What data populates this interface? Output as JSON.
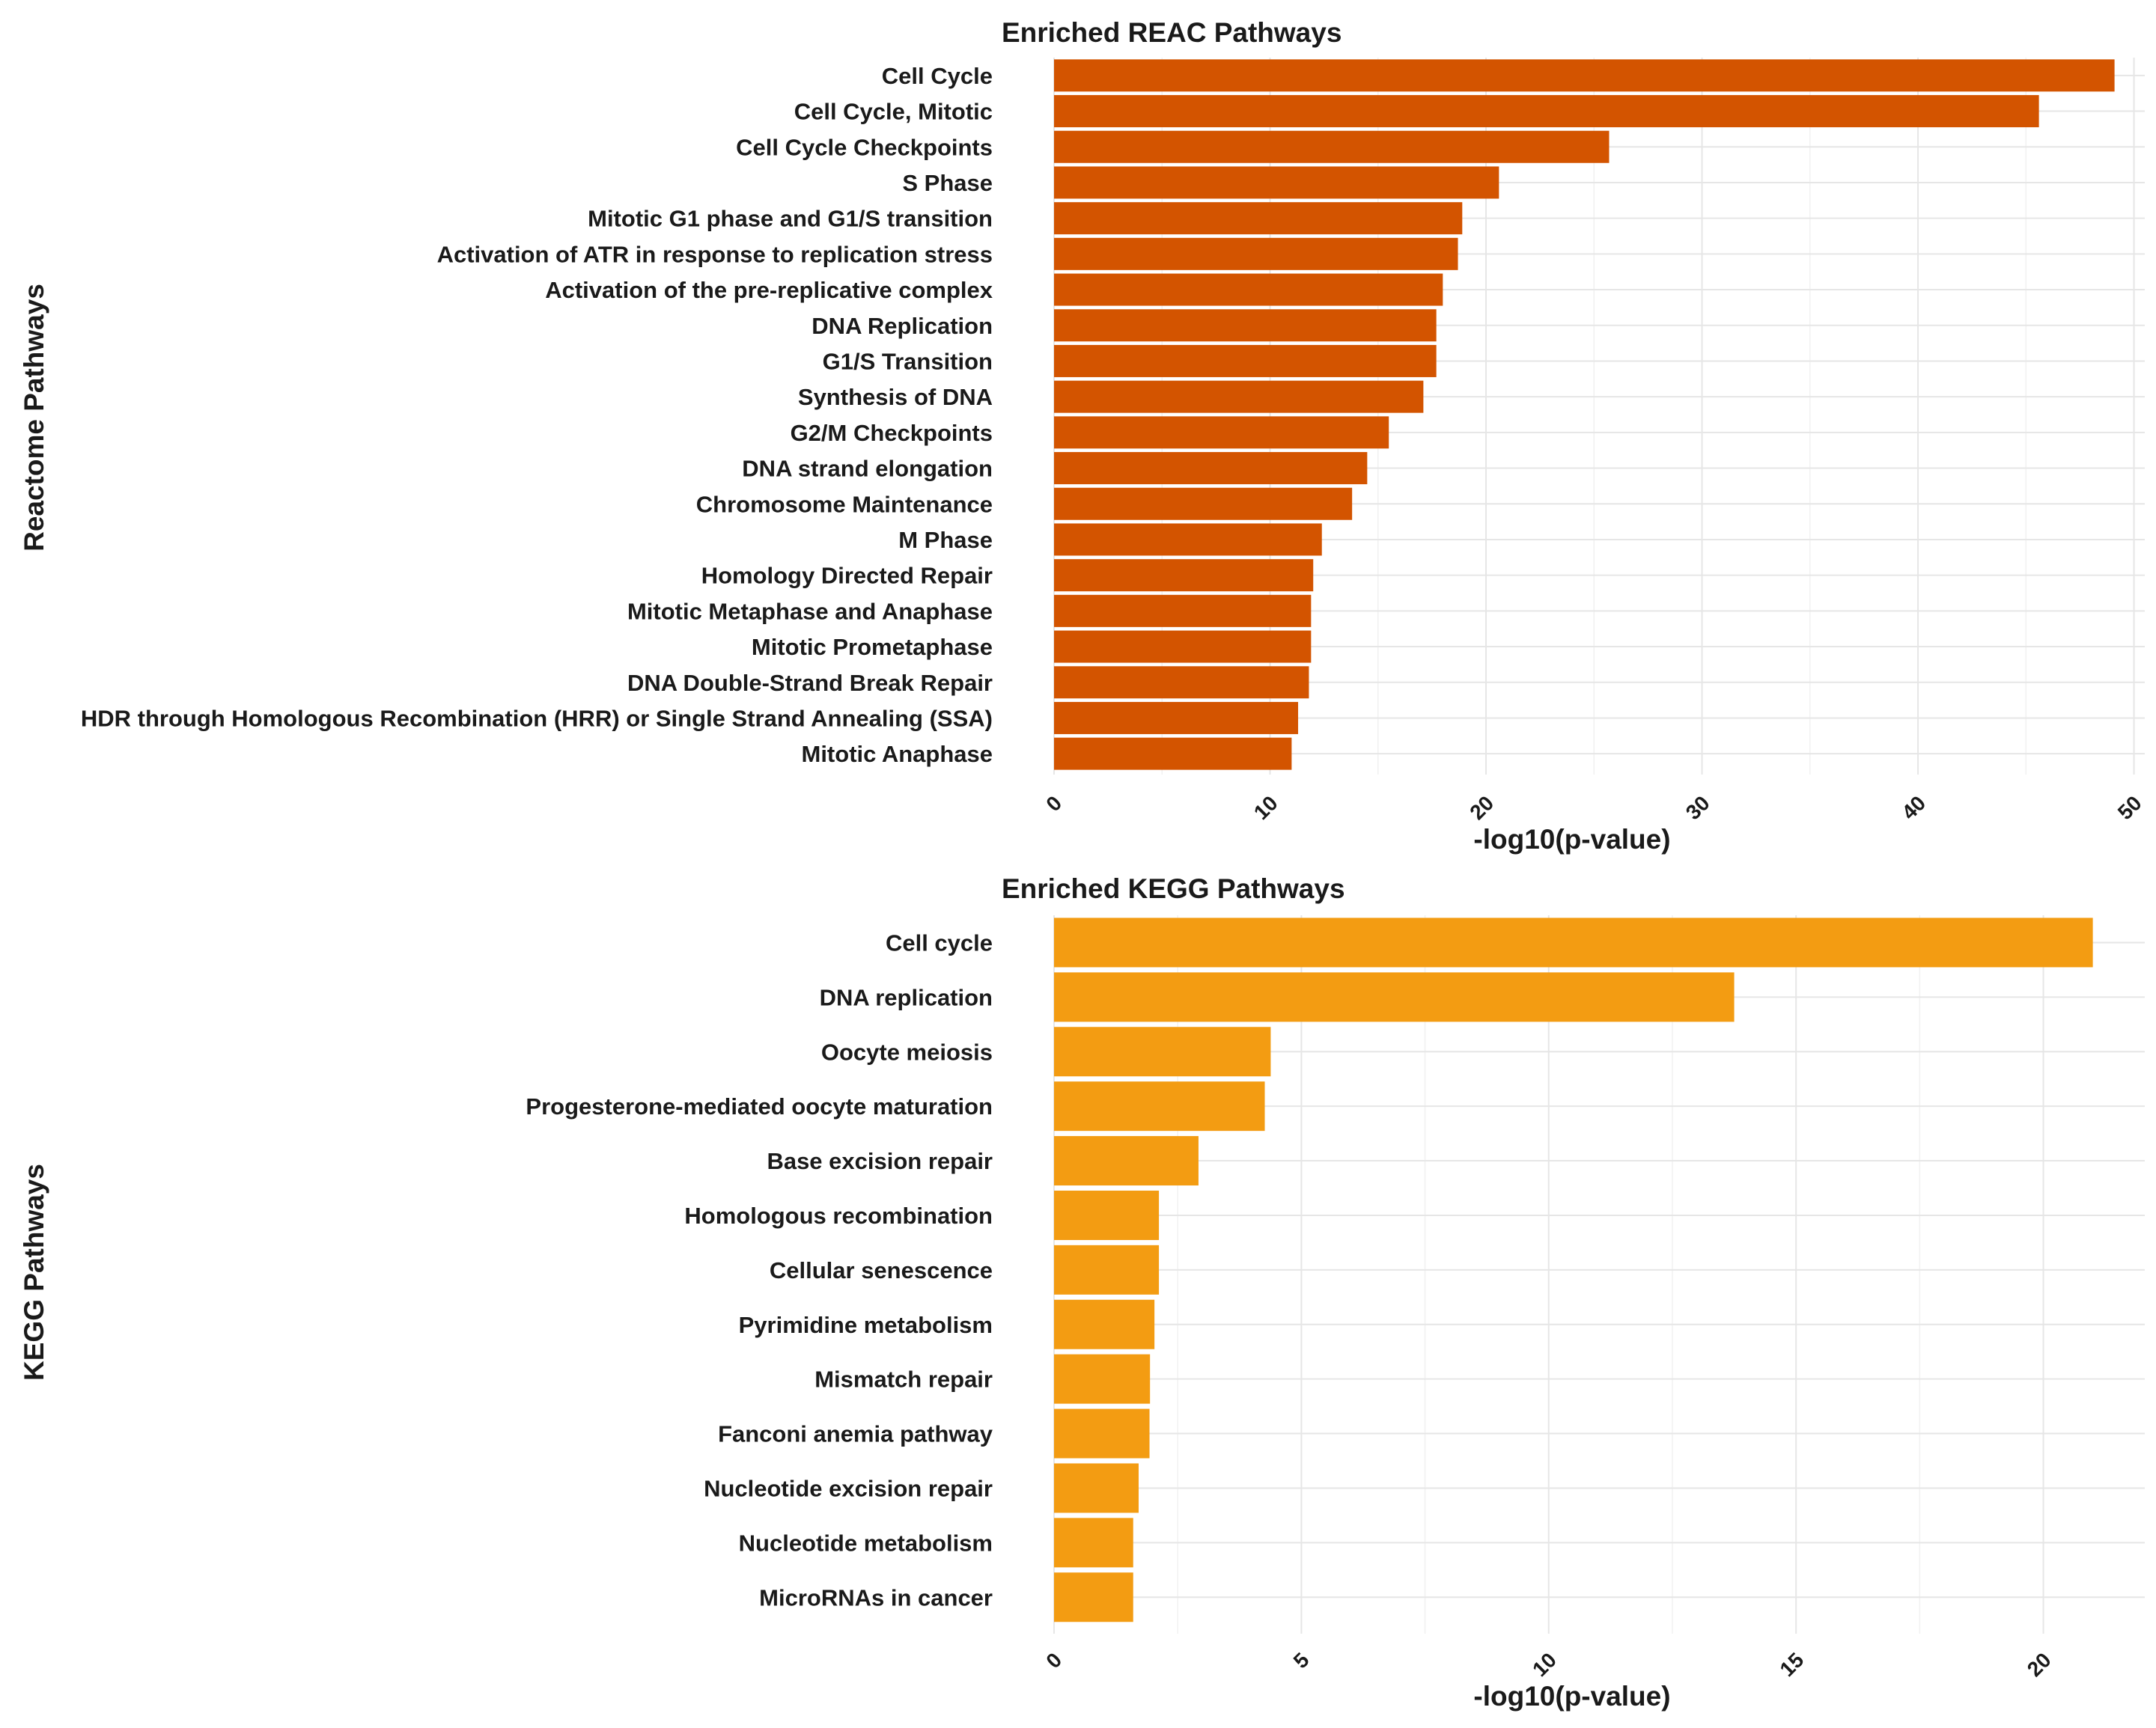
{
  "colors": {
    "reac_bar": "#D35400",
    "kegg_bar": "#F39C12",
    "grid": "#E6E6E6",
    "text": "#1A1A1A"
  },
  "chart_data": [
    {
      "type": "bar",
      "orientation": "horizontal",
      "title": "Enriched REAC Pathways",
      "xlabel": "-log10(p-value)",
      "ylabel": "Reactome Pathways",
      "xlim": [
        0,
        50.5
      ],
      "xticks": [
        "0",
        "10",
        "20",
        "30",
        "40",
        "50"
      ],
      "grid": true,
      "categories": [
        "Cell Cycle",
        "Cell Cycle, Mitotic",
        "Cell Cycle Checkpoints",
        "S Phase",
        "Mitotic G1 phase and G1/S transition",
        "Activation of ATR in response to replication stress",
        "Activation of the pre-replicative complex",
        "DNA Replication",
        "G1/S Transition",
        "Synthesis of DNA",
        "G2/M Checkpoints",
        "DNA strand elongation",
        "Chromosome Maintenance",
        "M Phase",
        "Homology Directed Repair",
        "Mitotic Metaphase and Anaphase",
        "Mitotic Prometaphase",
        "DNA Double-Strand Break Repair",
        "HDR through Homologous Recombination (HRR) or Single Strand Annealing (SSA)",
        "Mitotic Anaphase"
      ],
      "values": [
        49.1,
        45.6,
        25.7,
        20.6,
        18.9,
        18.7,
        18.0,
        17.7,
        17.7,
        17.1,
        15.5,
        14.5,
        13.8,
        12.4,
        12.0,
        11.9,
        11.9,
        11.8,
        11.3,
        11.0
      ]
    },
    {
      "type": "bar",
      "orientation": "horizontal",
      "title": "Enriched KEGG Pathways",
      "xlabel": "-log10(p-value)",
      "ylabel": "KEGG Pathways",
      "xlim": [
        0,
        22.05
      ],
      "xticks": [
        "0",
        "5",
        "10",
        "15",
        "20"
      ],
      "grid": true,
      "categories": [
        "Cell cycle",
        "DNA replication",
        "Oocyte meiosis",
        "Progesterone-mediated oocyte maturation",
        "Base excision repair",
        "Homologous recombination",
        "Cellular senescence",
        "Pyrimidine metabolism",
        "Mismatch repair",
        "Fanconi anemia pathway",
        "Nucleotide excision repair",
        "Nucleotide metabolism",
        "MicroRNAs in cancer"
      ],
      "values": [
        21.0,
        13.75,
        4.38,
        4.26,
        2.92,
        2.12,
        2.12,
        2.03,
        1.94,
        1.93,
        1.71,
        1.6,
        1.6
      ]
    }
  ]
}
